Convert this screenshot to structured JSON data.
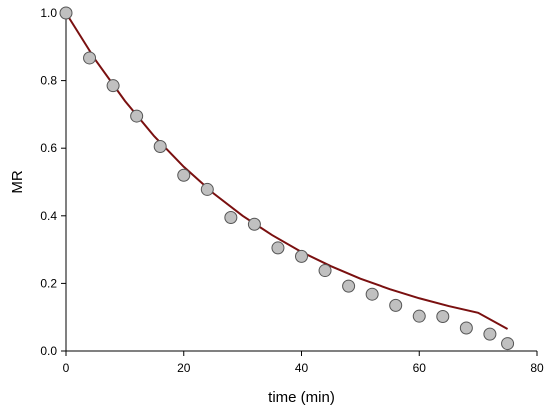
{
  "chart_data": {
    "type": "scatter",
    "title": "",
    "xlabel": "time (min)",
    "ylabel": "MR",
    "xlim": [
      0,
      80
    ],
    "ylim": [
      0.0,
      1.0
    ],
    "xticks": [
      0,
      20,
      40,
      60,
      80
    ],
    "xtick_labels": [
      "0",
      "20",
      "40",
      "60",
      "80"
    ],
    "yticks": [
      0.0,
      0.2,
      0.4,
      0.6,
      0.8,
      1.0
    ],
    "ytick_labels": [
      "0.0",
      "0.2",
      "0.4",
      "0.6",
      "0.8",
      "1.0"
    ],
    "grid": false,
    "legend": "none",
    "series": [
      {
        "kind": "points",
        "marker": "circle",
        "color": "#c0c0c0",
        "edge_color": "#555555",
        "x": [
          0,
          4,
          8,
          12,
          16,
          20,
          24,
          28,
          32,
          36,
          40,
          44,
          48,
          52,
          56,
          60,
          64,
          68,
          72,
          75
        ],
        "y": [
          1.0,
          0.867,
          0.785,
          0.695,
          0.605,
          0.52,
          0.478,
          0.395,
          0.375,
          0.305,
          0.28,
          0.238,
          0.192,
          0.168,
          0.135,
          0.103,
          0.102,
          0.068,
          0.05,
          0.022
        ]
      },
      {
        "kind": "line",
        "color": "#7a1010",
        "x": [
          0,
          5,
          10,
          15,
          20,
          25,
          30,
          35,
          40,
          45,
          50,
          55,
          60,
          65,
          70,
          75
        ],
        "y": [
          1.0,
          0.861,
          0.74,
          0.635,
          0.545,
          0.467,
          0.4,
          0.343,
          0.293,
          0.251,
          0.214,
          0.183,
          0.156,
          0.133,
          0.113,
          0.065
        ]
      }
    ]
  }
}
